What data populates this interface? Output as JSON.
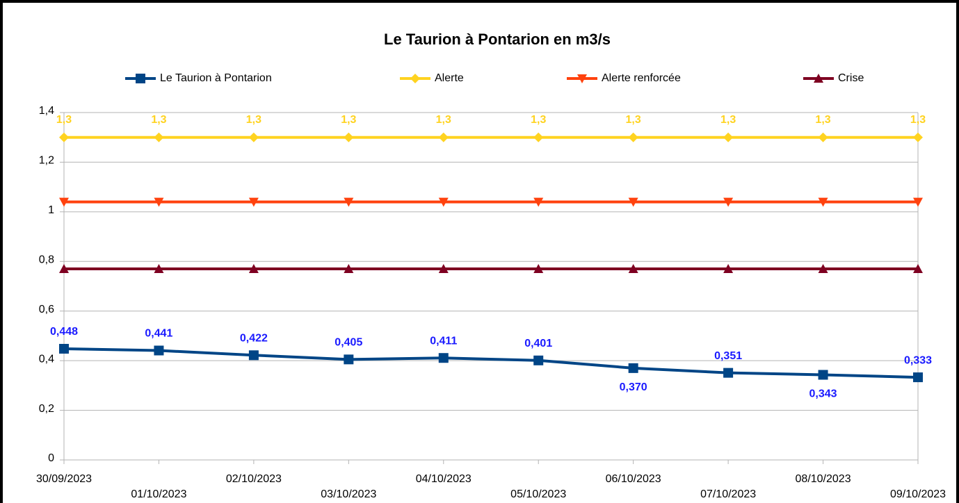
{
  "chart_data": {
    "type": "line",
    "title": "Le Taurion à Pontarion en m3/s",
    "categories": [
      "30/09/2023",
      "01/10/2023",
      "02/10/2023",
      "03/10/2023",
      "04/10/2023",
      "05/10/2023",
      "06/10/2023",
      "07/10/2023",
      "08/10/2023",
      "09/10/2023"
    ],
    "series": [
      {
        "name": "Le Taurion à Pontarion",
        "color": "#004586",
        "marker": "square",
        "label_color": "#1a1aff",
        "values": [
          0.448,
          0.441,
          0.422,
          0.405,
          0.411,
          0.401,
          0.37,
          0.351,
          0.343,
          0.333
        ],
        "value_labels": [
          "0,448",
          "0,441",
          "0,422",
          "0,405",
          "0,411",
          "0,401",
          "0,370",
          "0,351",
          "0,343",
          "0,333"
        ]
      },
      {
        "name": "Alerte",
        "color": "#ffd320",
        "marker": "diamond",
        "label_color": "#ffd320",
        "values": [
          1.3,
          1.3,
          1.3,
          1.3,
          1.3,
          1.3,
          1.3,
          1.3,
          1.3,
          1.3
        ],
        "value_labels": [
          "1,3",
          "1,3",
          "1,3",
          "1,3",
          "1,3",
          "1,3",
          "1,3",
          "1,3",
          "1,3",
          "1,3"
        ]
      },
      {
        "name": "Alerte renforcée",
        "color": "#ff420e",
        "marker": "triangle-down",
        "values": [
          1.04,
          1.04,
          1.04,
          1.04,
          1.04,
          1.04,
          1.04,
          1.04,
          1.04,
          1.04
        ]
      },
      {
        "name": "Crise",
        "color": "#7e0021",
        "marker": "triangle-up",
        "values": [
          0.77,
          0.77,
          0.77,
          0.77,
          0.77,
          0.77,
          0.77,
          0.77,
          0.77,
          0.77
        ]
      }
    ],
    "ylim": [
      0,
      1.4
    ],
    "yticks": [
      0,
      {
        "value": 0.2,
        "label": "0,2"
      },
      {
        "value": 0.4,
        "label": "0,4"
      },
      {
        "value": 0.6,
        "label": "0,6"
      },
      {
        "value": 0.8,
        "label": "0,8"
      },
      1,
      {
        "value": 1.2,
        "label": "1,2"
      },
      {
        "value": 1.4,
        "label": "1,4"
      }
    ],
    "grid": true,
    "legend": "top"
  }
}
